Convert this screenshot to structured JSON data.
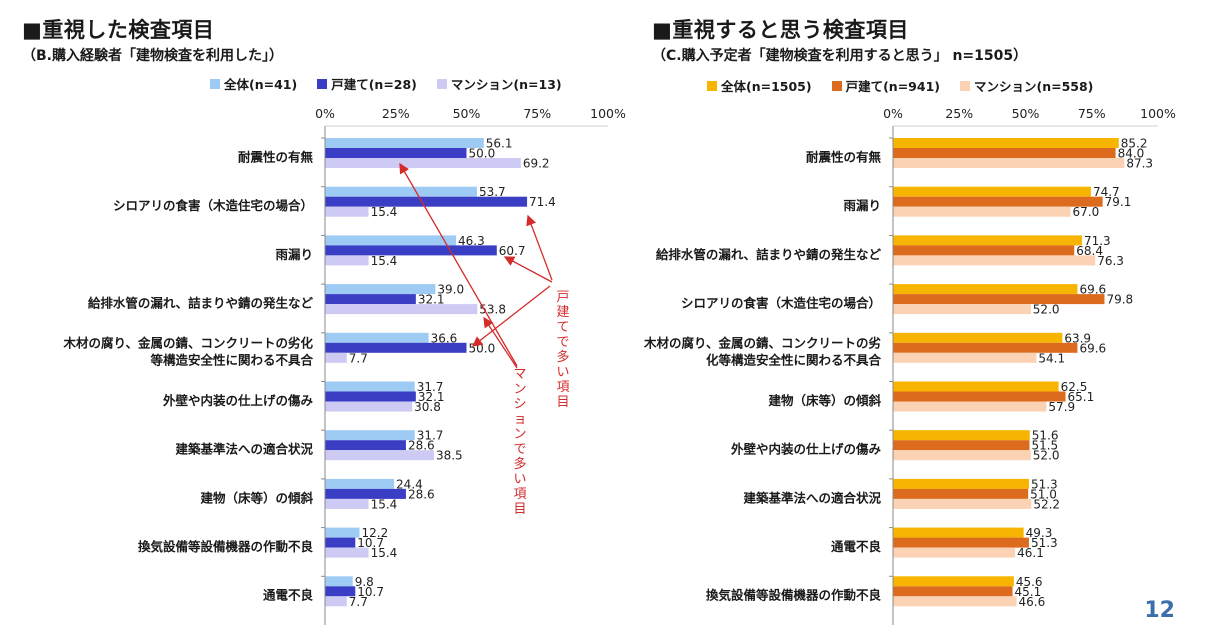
{
  "colors": {
    "left": [
      "#9ecbf4",
      "#3a3ec4",
      "#cdcbf4"
    ],
    "right": [
      "#f7b400",
      "#dc6b1e",
      "#fbd2b4"
    ],
    "annotation": "#d42b2b",
    "page_number": "#3b6eaa"
  },
  "left_panel": {
    "title": "■重視した検査項目",
    "subtitle": "（B.購入経験者「建物検査を利用した」）"
  },
  "right_panel": {
    "title": "■重視すると思う検査項目",
    "subtitle": "（C.購入予定者「建物検査を利用すると思う」 n=1505）"
  },
  "annotations": {
    "kodate": "戸建てで多い項目",
    "mansion": "マンションで多い項目"
  },
  "page_number": "12",
  "chart_data": [
    {
      "type": "bar",
      "orientation": "horizontal",
      "xlim": [
        0,
        100
      ],
      "ticks": [
        "0%",
        "25%",
        "50%",
        "75%",
        "100%"
      ],
      "grid": false,
      "legend_position": "top",
      "categories": [
        [
          "耐震性の有無"
        ],
        [
          "シロアリの食害（木造住宅の場合）"
        ],
        [
          "雨漏り"
        ],
        [
          "給排水管の漏れ、詰まりや錆の発生など"
        ],
        [
          "木材の腐り、金属の錆、コンクリートの劣化",
          "等構造安全性に関わる不具合"
        ],
        [
          "外壁や内装の仕上げの傷み"
        ],
        [
          "建築基準法への適合状況"
        ],
        [
          "建物（床等）の傾斜"
        ],
        [
          "換気設備等設備機器の作動不良"
        ],
        [
          "通電不良"
        ]
      ],
      "series": [
        {
          "name": "全体(n=41)",
          "values": [
            56.1,
            53.7,
            46.3,
            39.0,
            36.6,
            31.7,
            31.7,
            24.4,
            12.2,
            9.8
          ]
        },
        {
          "name": "戸建て(n=28)",
          "values": [
            50.0,
            71.4,
            60.7,
            32.1,
            50.0,
            32.1,
            28.6,
            28.6,
            10.7,
            10.7
          ]
        },
        {
          "name": "マンション(n=13)",
          "values": [
            69.2,
            15.4,
            15.4,
            53.8,
            7.7,
            30.8,
            38.5,
            15.4,
            15.4,
            7.7
          ]
        }
      ]
    },
    {
      "type": "bar",
      "orientation": "horizontal",
      "xlim": [
        0,
        100
      ],
      "ticks": [
        "0%",
        "25%",
        "50%",
        "75%",
        "100%"
      ],
      "grid": false,
      "legend_position": "top",
      "categories": [
        [
          "耐震性の有無"
        ],
        [
          "雨漏り"
        ],
        [
          "給排水管の漏れ、詰まりや錆の発生など"
        ],
        [
          "シロアリの食害（木造住宅の場合）"
        ],
        [
          "木材の腐り、金属の錆、コンクリートの劣",
          "化等構造安全性に関わる不具合"
        ],
        [
          "建物（床等）の傾斜"
        ],
        [
          "外壁や内装の仕上げの傷み"
        ],
        [
          "建築基準法への適合状況"
        ],
        [
          "通電不良"
        ],
        [
          "換気設備等設備機器の作動不良"
        ]
      ],
      "series": [
        {
          "name": "全体(n=1505)",
          "values": [
            85.2,
            74.7,
            71.3,
            69.6,
            63.9,
            62.5,
            51.6,
            51.3,
            49.3,
            45.6
          ]
        },
        {
          "name": "戸建て(n=941)",
          "values": [
            84.0,
            79.1,
            68.4,
            79.8,
            69.6,
            65.1,
            51.5,
            51.0,
            51.3,
            45.1
          ]
        },
        {
          "name": "マンション(n=558)",
          "values": [
            87.3,
            67.0,
            76.3,
            52.0,
            54.1,
            57.9,
            52.0,
            52.2,
            46.1,
            46.6
          ]
        }
      ]
    }
  ]
}
